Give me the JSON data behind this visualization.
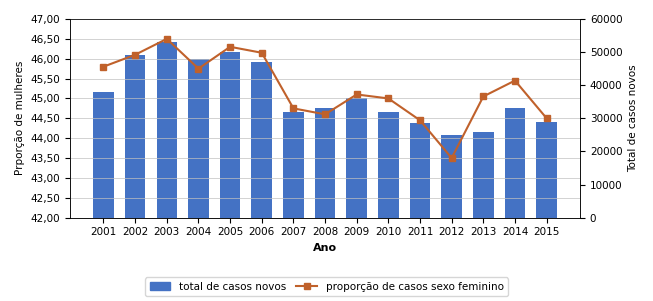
{
  "years": [
    2001,
    2002,
    2003,
    2004,
    2005,
    2006,
    2007,
    2008,
    2009,
    2010,
    2011,
    2012,
    2013,
    2014,
    2015
  ],
  "bar_values": [
    38000,
    49000,
    53000,
    48000,
    50000,
    47000,
    32000,
    33000,
    36000,
    32000,
    28500,
    25000,
    26000,
    33000,
    29000
  ],
  "line_values": [
    45.8,
    46.1,
    46.5,
    45.75,
    46.3,
    46.15,
    44.75,
    44.6,
    45.1,
    45.0,
    44.45,
    43.5,
    45.05,
    45.45,
    44.5
  ],
  "bar_color": "#4472C4",
  "line_color": "#C0612B",
  "left_ylim": [
    42.0,
    47.0
  ],
  "right_ylim": [
    0,
    60000
  ],
  "left_yticks": [
    42.0,
    42.5,
    43.0,
    43.5,
    44.0,
    44.5,
    45.0,
    45.5,
    46.0,
    46.5,
    47.0
  ],
  "right_yticks": [
    0,
    10000,
    20000,
    30000,
    40000,
    50000,
    60000
  ],
  "xlabel": "Ano",
  "ylabel_left": "Prporção de mulheres",
  "ylabel_right": "Total de casos novos",
  "legend_bar": "total de casos novos",
  "legend_line": "proporção de casos sexo feminino",
  "bg_color": "#FFFFFF",
  "grid_color": "#C0C0C0"
}
